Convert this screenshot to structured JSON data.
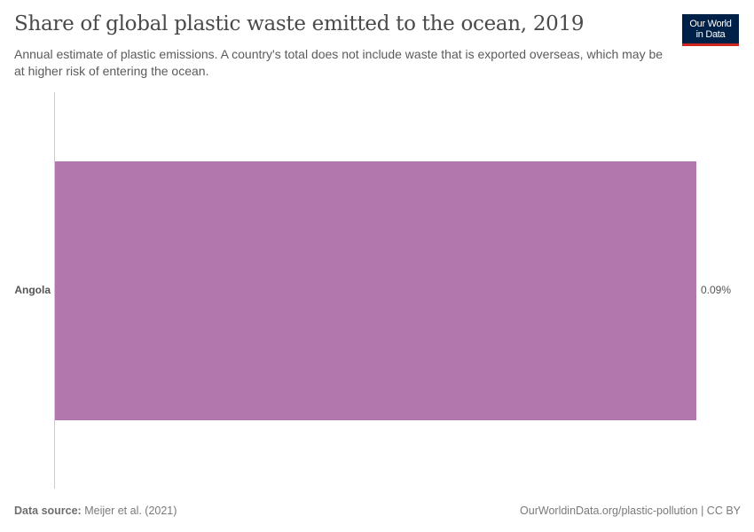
{
  "header": {
    "title": "Share of global plastic waste emitted to the ocean, 2019",
    "subtitle": "Annual estimate of plastic emissions. A country's total does not include waste that is exported overseas, which may be at higher risk of entering the ocean.",
    "logo_line1": "Our World",
    "logo_line2": "in Data"
  },
  "colors": {
    "bar": "#b278ae",
    "logo_bg": "#002147",
    "logo_accent": "#ce261e",
    "axis": "#cccccc"
  },
  "chart_data": {
    "type": "bar",
    "orientation": "horizontal",
    "title": "Share of global plastic waste emitted to the ocean, 2019",
    "subtitle": "Annual estimate of plastic emissions. A country's total does not include waste that is exported overseas, which may be at higher risk of entering the ocean.",
    "categories": [
      "Angola"
    ],
    "values": [
      0.09
    ],
    "value_labels": [
      "0.09%"
    ],
    "unit": "%",
    "xlabel": "",
    "ylabel": "",
    "xlim": [
      0,
      0.09
    ],
    "grid": false,
    "legend": null
  },
  "footer": {
    "source_label": "Data source:",
    "source_value": " Meijer et al. (2021)",
    "url_license": "OurWorldinData.org/plastic-pollution | CC BY"
  }
}
